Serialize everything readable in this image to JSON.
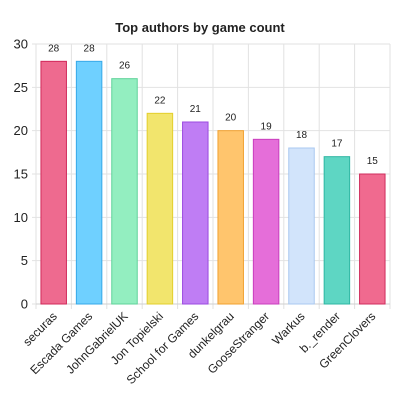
{
  "chart_data": {
    "type": "bar",
    "title": "Top authors by game count",
    "xlabel": "",
    "ylabel": "",
    "categories": [
      "securas",
      "Escada Games",
      "JohnGabrielUK",
      "Jon Topielski",
      "School for Games",
      "dunkelgrau",
      "GooseStranger",
      "Warkus",
      "b._render",
      "GreenClovers"
    ],
    "values": [
      28,
      28,
      26,
      22,
      21,
      20,
      19,
      18,
      17,
      15
    ],
    "ylim": [
      0,
      30
    ],
    "yticks": [
      0,
      5,
      10,
      15,
      20,
      25,
      30
    ],
    "grid": true,
    "legend": "none",
    "colors": [
      {
        "fill": "#ee6a8f",
        "stroke": "#d1285a"
      },
      {
        "fill": "#6fd0ff",
        "stroke": "#36a9e8"
      },
      {
        "fill": "#93eec0",
        "stroke": "#5fd39a"
      },
      {
        "fill": "#f2e56d",
        "stroke": "#e3cf2c"
      },
      {
        "fill": "#bf7df4",
        "stroke": "#9b4ae0"
      },
      {
        "fill": "#ffc56d",
        "stroke": "#f2a12f"
      },
      {
        "fill": "#e56ed9",
        "stroke": "#c93ebd"
      },
      {
        "fill": "#d2e4fb",
        "stroke": "#a9c8f0"
      },
      {
        "fill": "#5ed6c3",
        "stroke": "#2fb7a3"
      },
      {
        "fill": "#f06a8f",
        "stroke": "#cf2c5c"
      }
    ]
  }
}
